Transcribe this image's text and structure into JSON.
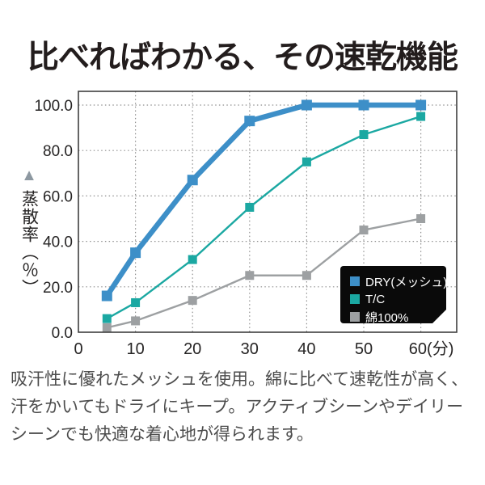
{
  "title": "比べればわかる、その速乾機能",
  "chart_data": {
    "type": "line",
    "title": "比べればわかる、その速乾機能",
    "ylabel": "蒸散率（％）",
    "xlabel": "(分)",
    "x": [
      5,
      10,
      20,
      30,
      40,
      50,
      60
    ],
    "x_ticks": [
      0,
      10,
      20,
      30,
      40,
      50,
      60
    ],
    "x_tick_labels": [
      "0",
      "10",
      "20",
      "30",
      "40",
      "50",
      "60(分)"
    ],
    "y_ticks": [
      0,
      20,
      40,
      60,
      80,
      100
    ],
    "y_tick_labels": [
      "0.0",
      "20.0",
      "40.0",
      "60.0",
      "80.0",
      "100.0"
    ],
    "ylim": [
      0,
      106
    ],
    "xlim": [
      0,
      66
    ],
    "grid": "dotted",
    "legend_position": "bottom-right",
    "series": [
      {
        "name": "DRY(メッシュ)",
        "color": "#3d8fc8",
        "values": [
          16,
          35,
          67,
          93,
          100,
          100,
          100
        ]
      },
      {
        "name": "T/C",
        "color": "#1ba8a2",
        "values": [
          6,
          13,
          32,
          55,
          75,
          87,
          95
        ]
      },
      {
        "name": "綿100%",
        "color": "#9da0a2",
        "values": [
          2,
          5,
          14,
          25,
          25,
          45,
          50
        ]
      }
    ]
  },
  "axis_marker": "▲",
  "colors": {
    "grid": "#8f8f8f",
    "plot_border": "#3f3f3f",
    "legend_bg": "#0a0a0a",
    "legend_text": "#ffffff",
    "tick_text": "#262424"
  },
  "description": "吸汗性に優れたメッシュを使用。綿に比べて速乾性が高く、汗をかいてもドライにキープ。アクティブシーンやデイリーシーンでも快適な着心地が得られます。"
}
